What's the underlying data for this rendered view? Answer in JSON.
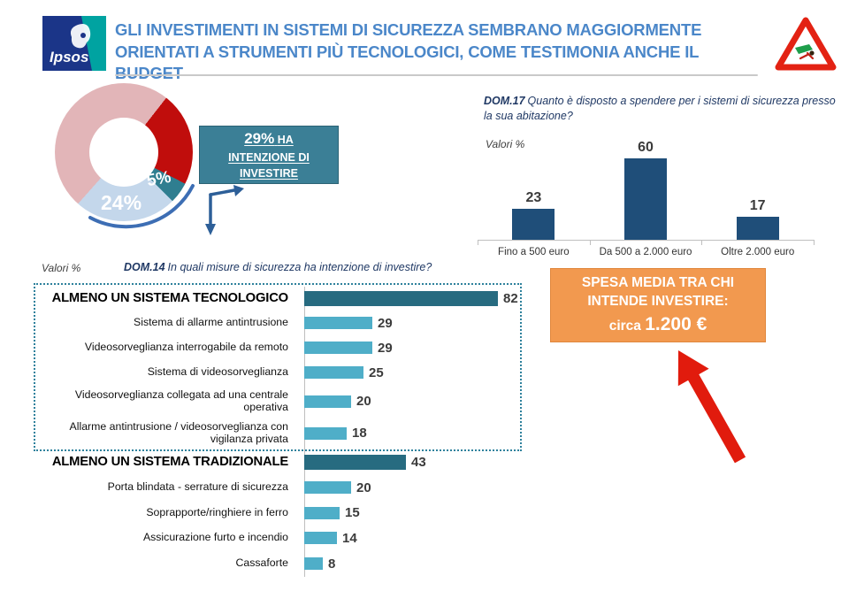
{
  "header": {
    "logo_text": "Ipsos",
    "title_lines": [
      "GLI INVESTIMENTI IN SISTEMI DI SICUREZZA SEMBRANO MAGGIORMENTE",
      "ORIENTATI A STRUMENTI PIÙ TECNOLOGICI, COME TESTIMONIA ANCHE IL BUDGET"
    ],
    "title_color": "#4B87C9",
    "warning_icon": "theft-warning-triangle-icon"
  },
  "invest_box": {
    "value": "29%",
    "line1_rest": "HA",
    "line2": "INTENZIONE DI",
    "line3": "INVESTIRE",
    "bg_color": "#3B7F96"
  },
  "spend_box": {
    "line1": "SPESA MEDIA TRA CHI",
    "line2": "INTENDE INVESTIRE:",
    "line3_prefix": "circa",
    "line3_value": "1.200 €",
    "bg_color": "#F2994F"
  },
  "chart_data": [
    {
      "id": "intention_donut",
      "type": "pie",
      "title": "",
      "start_angle_deg": 38,
      "slices": [
        {
          "name": "slice-red",
          "value": 22,
          "color": "#C00D0C",
          "label": ""
        },
        {
          "name": "slice-teal",
          "value": 5,
          "color": "#2F7E90",
          "label": "5%"
        },
        {
          "name": "slice-light-blue",
          "value": 24,
          "color": "#C4D7EB",
          "label": "24%"
        },
        {
          "name": "slice-pink",
          "value": 49,
          "color": "#E2B5B8",
          "label": ""
        }
      ],
      "note": "values of red and pink slices are unlabeled estimates; 5% + 24% = 29% ha intenzione di investire"
    },
    {
      "id": "dom17_spend",
      "type": "bar",
      "question_label": "DOM.17",
      "question": "Quanto è disposto a spendere per i sistemi di sicurezza presso la sua abitazione?",
      "units_note": "Valori %",
      "categories": [
        "Fino a 500 euro",
        "Da 500 a 2.000 euro",
        "Oltre 2.000 euro"
      ],
      "values": [
        23,
        60,
        17
      ],
      "bar_color": "#1F4E79",
      "ylim": [
        0,
        65
      ],
      "legend": "none",
      "grid": false
    },
    {
      "id": "dom14_measures",
      "type": "bar-horizontal",
      "question_label": "DOM.14",
      "question": "In quali misure di sicurezza ha intenzione di investire?",
      "units_note": "Valori %",
      "rows": [
        {
          "label": "ALMENO UN SISTEMA TECNOLOGICO",
          "value": 82,
          "emphasis": true
        },
        {
          "label": "Sistema di allarme antintrusione",
          "value": 29,
          "emphasis": false
        },
        {
          "label": "Videosorveglianza interrogabile da remoto",
          "value": 29,
          "emphasis": false
        },
        {
          "label": "Sistema di videosorveglianza",
          "value": 25,
          "emphasis": false
        },
        {
          "label": "Videosorveglianza collegata ad una centrale operativa",
          "value": 20,
          "emphasis": false
        },
        {
          "label": "Allarme antintrusione / videosorveglianza con vigilanza privata",
          "value": 18,
          "emphasis": false
        },
        {
          "label": "ALMENO UN SISTEMA TRADIZIONALE",
          "value": 43,
          "emphasis": true
        },
        {
          "label": "Porta blindata - serrature di sicurezza",
          "value": 20,
          "emphasis": false
        },
        {
          "label": "Soprapporte/ringhiere in ferro",
          "value": 15,
          "emphasis": false
        },
        {
          "label": "Assicurazione furto e incendio",
          "value": 14,
          "emphasis": false
        },
        {
          "label": "Cassaforte",
          "value": 8,
          "emphasis": false
        }
      ],
      "colors": {
        "emphasis_bar": "#276B80",
        "bar": "#4FAEC8",
        "group_box_border": "#2E819C"
      },
      "xlim": [
        0,
        100
      ],
      "grid": false
    }
  ]
}
